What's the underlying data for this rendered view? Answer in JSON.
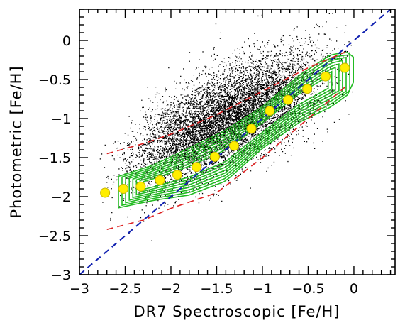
{
  "chart_data": {
    "type": "scatter",
    "title": "",
    "xlabel": "DR7 Spectroscopic [Fe/H]",
    "ylabel": "Photometric [Fe/H]",
    "xlim": [
      -3.0,
      0.45
    ],
    "ylim": [
      -3.0,
      0.4
    ],
    "x_ticks": [
      -3,
      -2.5,
      -2,
      -1.5,
      -1,
      -0.5,
      0
    ],
    "x_tick_labels": [
      "−3",
      "−2.5",
      "−2",
      "−1.5",
      "−1",
      "−0.5",
      "0"
    ],
    "y_ticks": [
      -3,
      -2.5,
      -2,
      -1.5,
      -1,
      -0.5,
      0
    ],
    "y_tick_labels": [
      "−3",
      "−2.5",
      "−2",
      "−1.5",
      "−1",
      "−0.5",
      "0"
    ],
    "grid": false,
    "legend": "none",
    "colors": {
      "points": "#000000",
      "contours": "#22bb22",
      "binned_means": "#ffee00",
      "binned_means_edge": "#c8b400",
      "one_to_one_line": "#1020b0",
      "scatter_envelope": "#dd2020"
    },
    "binned_means": {
      "x": [
        -2.72,
        -2.52,
        -2.33,
        -2.12,
        -1.93,
        -1.72,
        -1.52,
        -1.31,
        -1.12,
        -0.92,
        -0.72,
        -0.51,
        -0.31,
        -0.1
      ],
      "y": [
        -1.95,
        -1.9,
        -1.87,
        -1.79,
        -1.72,
        -1.62,
        -1.49,
        -1.35,
        -1.13,
        -0.9,
        -0.76,
        -0.62,
        -0.46,
        -0.35
      ]
    },
    "one_to_one_line": {
      "x": [
        -3.0,
        0.4
      ],
      "y": [
        -3.0,
        0.4
      ]
    },
    "scatter_envelope": {
      "upper": {
        "x": [
          -2.7,
          -2.3,
          -2.0,
          -1.5,
          -1.0,
          -0.5,
          -0.1
        ],
        "y": [
          -1.45,
          -1.32,
          -1.2,
          -0.95,
          -0.65,
          -0.35,
          -0.15
        ]
      },
      "lower": {
        "x": [
          -2.7,
          -2.3,
          -2.0,
          -1.5,
          -1.0,
          -0.5,
          -0.1
        ],
        "y": [
          -2.42,
          -2.3,
          -2.15,
          -1.95,
          -1.5,
          -1.0,
          -0.6
        ]
      }
    },
    "density_contours": {
      "upper_bound": {
        "x": [
          -2.6,
          -2.2,
          -1.8,
          -1.4,
          -1.0,
          -0.6,
          -0.25,
          -0.05,
          0.02
        ],
        "y": [
          -1.75,
          -1.6,
          -1.38,
          -1.15,
          -0.85,
          -0.45,
          -0.18,
          -0.15,
          -0.25
        ]
      },
      "lower_bound": {
        "x": [
          -2.6,
          -2.2,
          -1.8,
          -1.4,
          -1.0,
          -0.6,
          -0.25,
          -0.05,
          0.02
        ],
        "y": [
          -2.15,
          -2.05,
          -1.98,
          -1.8,
          -1.38,
          -1.05,
          -0.85,
          -0.68,
          -0.45
        ]
      }
    },
    "scatter_points": {
      "n": 9000,
      "slope": 0.52,
      "intercept": -0.28,
      "spread": 0.3,
      "x_range": [
        -2.85,
        0.1
      ]
    }
  }
}
